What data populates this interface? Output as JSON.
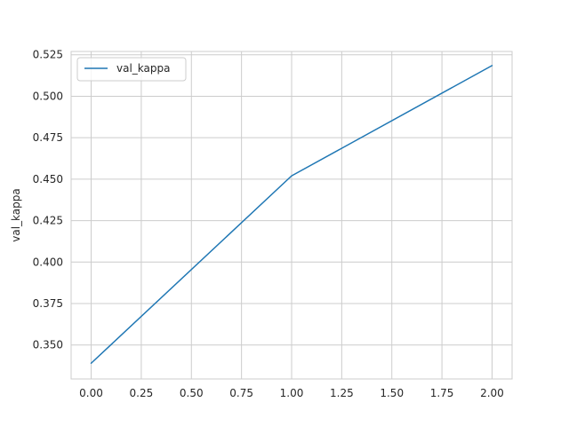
{
  "chart_data": {
    "type": "line",
    "title": "",
    "xlabel": "",
    "ylabel": "val_kappa",
    "xlim": [
      -0.1,
      2.1
    ],
    "ylim": [
      0.3295,
      0.527
    ],
    "xticks": [
      0.0,
      0.25,
      0.5,
      0.75,
      1.0,
      1.25,
      1.5,
      1.75,
      2.0
    ],
    "xtick_labels": [
      "0.00",
      "0.25",
      "0.50",
      "0.75",
      "1.00",
      "1.25",
      "1.50",
      "1.75",
      "2.00"
    ],
    "yticks": [
      0.35,
      0.375,
      0.4,
      0.425,
      0.45,
      0.475,
      0.5,
      0.525
    ],
    "ytick_labels": [
      "0.350",
      "0.375",
      "0.400",
      "0.425",
      "0.450",
      "0.475",
      "0.500",
      "0.525"
    ],
    "grid": true,
    "legend_position": "top-left",
    "series": [
      {
        "name": "val_kappa",
        "color": "#1f77b4",
        "x": [
          0,
          1,
          2
        ],
        "y": [
          0.339,
          0.452,
          0.5185
        ]
      }
    ]
  }
}
